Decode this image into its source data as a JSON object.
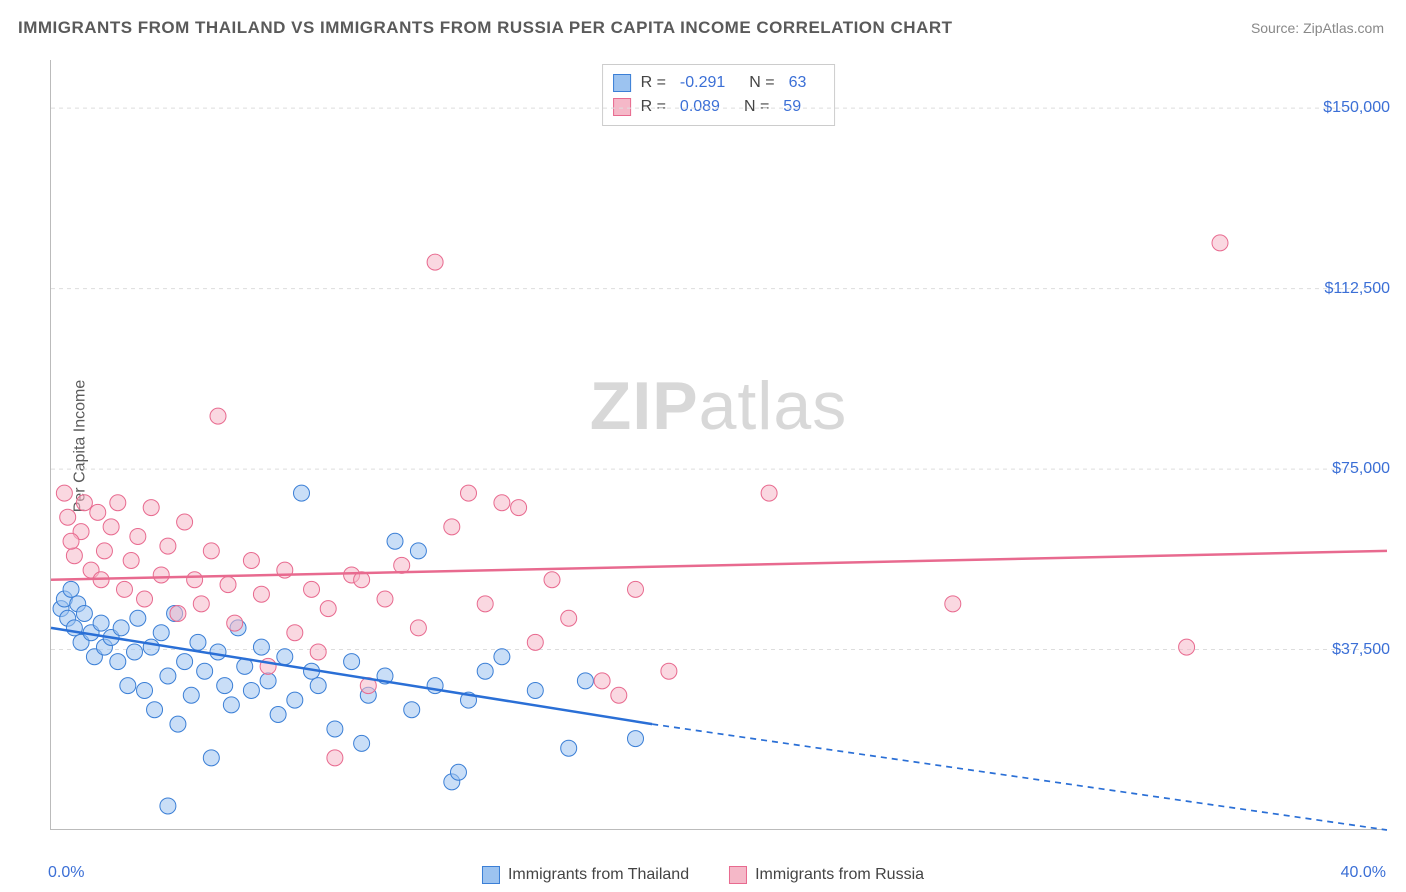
{
  "title": "IMMIGRANTS FROM THAILAND VS IMMIGRANTS FROM RUSSIA PER CAPITA INCOME CORRELATION CHART",
  "source_label": "Source: ZipAtlas.com",
  "y_axis_label": "Per Capita Income",
  "watermark": {
    "bold": "ZIP",
    "rest": "atlas"
  },
  "chart": {
    "type": "scatter",
    "background_color": "#ffffff",
    "grid_color": "#dddddd",
    "axis_color": "#bbbbbb",
    "xlim": [
      0,
      40
    ],
    "ylim": [
      0,
      160000
    ],
    "x_ticks": [
      {
        "value": 0,
        "label": "0.0%"
      },
      {
        "value": 40,
        "label": "40.0%"
      }
    ],
    "y_ticks": [
      {
        "value": 37500,
        "label": "$37,500"
      },
      {
        "value": 75000,
        "label": "$75,000"
      },
      {
        "value": 112500,
        "label": "$112,500"
      },
      {
        "value": 150000,
        "label": "$150,000"
      }
    ],
    "marker_radius": 8,
    "marker_opacity": 0.55,
    "series": [
      {
        "name": "Immigrants from Thailand",
        "fill_color": "#9cc3f0",
        "stroke_color": "#3b7fd6",
        "stats": {
          "R": "-0.291",
          "N": "63"
        },
        "trend": {
          "solid": {
            "x1": 0,
            "y1": 42000,
            "x2": 18,
            "y2": 22000
          },
          "dashed": {
            "x1": 18,
            "y1": 22000,
            "x2": 40,
            "y2": 0
          },
          "line_width": 2.5,
          "line_color": "#2a6fd6"
        },
        "points": [
          {
            "x": 0.3,
            "y": 46000
          },
          {
            "x": 0.4,
            "y": 48000
          },
          {
            "x": 0.5,
            "y": 44000
          },
          {
            "x": 0.6,
            "y": 50000
          },
          {
            "x": 0.7,
            "y": 42000
          },
          {
            "x": 0.8,
            "y": 47000
          },
          {
            "x": 0.9,
            "y": 39000
          },
          {
            "x": 1.0,
            "y": 45000
          },
          {
            "x": 1.2,
            "y": 41000
          },
          {
            "x": 1.3,
            "y": 36000
          },
          {
            "x": 1.5,
            "y": 43000
          },
          {
            "x": 1.6,
            "y": 38000
          },
          {
            "x": 1.8,
            "y": 40000
          },
          {
            "x": 2.0,
            "y": 35000
          },
          {
            "x": 2.1,
            "y": 42000
          },
          {
            "x": 2.3,
            "y": 30000
          },
          {
            "x": 2.5,
            "y": 37000
          },
          {
            "x": 2.6,
            "y": 44000
          },
          {
            "x": 2.8,
            "y": 29000
          },
          {
            "x": 3.0,
            "y": 38000
          },
          {
            "x": 3.1,
            "y": 25000
          },
          {
            "x": 3.3,
            "y": 41000
          },
          {
            "x": 3.5,
            "y": 32000
          },
          {
            "x": 3.7,
            "y": 45000
          },
          {
            "x": 3.8,
            "y": 22000
          },
          {
            "x": 4.0,
            "y": 35000
          },
          {
            "x": 4.2,
            "y": 28000
          },
          {
            "x": 4.4,
            "y": 39000
          },
          {
            "x": 4.6,
            "y": 33000
          },
          {
            "x": 4.8,
            "y": 15000
          },
          {
            "x": 5.0,
            "y": 37000
          },
          {
            "x": 5.2,
            "y": 30000
          },
          {
            "x": 5.4,
            "y": 26000
          },
          {
            "x": 5.6,
            "y": 42000
          },
          {
            "x": 5.8,
            "y": 34000
          },
          {
            "x": 6.0,
            "y": 29000
          },
          {
            "x": 6.3,
            "y": 38000
          },
          {
            "x": 6.5,
            "y": 31000
          },
          {
            "x": 6.8,
            "y": 24000
          },
          {
            "x": 7.0,
            "y": 36000
          },
          {
            "x": 7.3,
            "y": 27000
          },
          {
            "x": 7.5,
            "y": 70000
          },
          {
            "x": 7.8,
            "y": 33000
          },
          {
            "x": 8.0,
            "y": 30000
          },
          {
            "x": 8.5,
            "y": 21000
          },
          {
            "x": 9.0,
            "y": 35000
          },
          {
            "x": 9.3,
            "y": 18000
          },
          {
            "x": 9.5,
            "y": 28000
          },
          {
            "x": 10.0,
            "y": 32000
          },
          {
            "x": 10.3,
            "y": 60000
          },
          {
            "x": 10.8,
            "y": 25000
          },
          {
            "x": 11.0,
            "y": 58000
          },
          {
            "x": 11.5,
            "y": 30000
          },
          {
            "x": 12.0,
            "y": 10000
          },
          {
            "x": 12.2,
            "y": 12000
          },
          {
            "x": 12.5,
            "y": 27000
          },
          {
            "x": 13.0,
            "y": 33000
          },
          {
            "x": 13.5,
            "y": 36000
          },
          {
            "x": 14.5,
            "y": 29000
          },
          {
            "x": 15.5,
            "y": 17000
          },
          {
            "x": 16.0,
            "y": 31000
          },
          {
            "x": 17.5,
            "y": 19000
          },
          {
            "x": 3.5,
            "y": 5000
          }
        ]
      },
      {
        "name": "Immigrants from Russia",
        "fill_color": "#f5b8c8",
        "stroke_color": "#e86a8f",
        "stats": {
          "R": "0.089",
          "N": "59"
        },
        "trend": {
          "solid": {
            "x1": 0,
            "y1": 52000,
            "x2": 40,
            "y2": 58000
          },
          "dashed": null,
          "line_width": 2.5,
          "line_color": "#e86a8f"
        },
        "points": [
          {
            "x": 0.5,
            "y": 65000
          },
          {
            "x": 0.7,
            "y": 57000
          },
          {
            "x": 0.9,
            "y": 62000
          },
          {
            "x": 1.0,
            "y": 68000
          },
          {
            "x": 0.6,
            "y": 60000
          },
          {
            "x": 1.2,
            "y": 54000
          },
          {
            "x": 1.4,
            "y": 66000
          },
          {
            "x": 1.5,
            "y": 52000
          },
          {
            "x": 1.6,
            "y": 58000
          },
          {
            "x": 1.8,
            "y": 63000
          },
          {
            "x": 2.0,
            "y": 68000
          },
          {
            "x": 2.2,
            "y": 50000
          },
          {
            "x": 2.4,
            "y": 56000
          },
          {
            "x": 2.6,
            "y": 61000
          },
          {
            "x": 2.8,
            "y": 48000
          },
          {
            "x": 3.0,
            "y": 67000
          },
          {
            "x": 3.3,
            "y": 53000
          },
          {
            "x": 3.5,
            "y": 59000
          },
          {
            "x": 3.8,
            "y": 45000
          },
          {
            "x": 4.0,
            "y": 64000
          },
          {
            "x": 4.3,
            "y": 52000
          },
          {
            "x": 4.5,
            "y": 47000
          },
          {
            "x": 4.8,
            "y": 58000
          },
          {
            "x": 5.0,
            "y": 86000
          },
          {
            "x": 5.3,
            "y": 51000
          },
          {
            "x": 5.5,
            "y": 43000
          },
          {
            "x": 6.0,
            "y": 56000
          },
          {
            "x": 6.3,
            "y": 49000
          },
          {
            "x": 6.5,
            "y": 34000
          },
          {
            "x": 7.0,
            "y": 54000
          },
          {
            "x": 7.3,
            "y": 41000
          },
          {
            "x": 7.8,
            "y": 50000
          },
          {
            "x": 8.0,
            "y": 37000
          },
          {
            "x": 8.3,
            "y": 46000
          },
          {
            "x": 8.5,
            "y": 15000
          },
          {
            "x": 9.0,
            "y": 53000
          },
          {
            "x": 9.3,
            "y": 52000
          },
          {
            "x": 9.5,
            "y": 30000
          },
          {
            "x": 10.0,
            "y": 48000
          },
          {
            "x": 10.5,
            "y": 55000
          },
          {
            "x": 11.0,
            "y": 42000
          },
          {
            "x": 11.5,
            "y": 118000
          },
          {
            "x": 12.0,
            "y": 63000
          },
          {
            "x": 12.5,
            "y": 70000
          },
          {
            "x": 13.0,
            "y": 47000
          },
          {
            "x": 13.5,
            "y": 68000
          },
          {
            "x": 14.0,
            "y": 67000
          },
          {
            "x": 14.5,
            "y": 39000
          },
          {
            "x": 15.0,
            "y": 52000
          },
          {
            "x": 15.5,
            "y": 44000
          },
          {
            "x": 16.5,
            "y": 31000
          },
          {
            "x": 17.0,
            "y": 28000
          },
          {
            "x": 17.5,
            "y": 50000
          },
          {
            "x": 18.5,
            "y": 33000
          },
          {
            "x": 21.5,
            "y": 70000
          },
          {
            "x": 27.0,
            "y": 47000
          },
          {
            "x": 34.0,
            "y": 38000
          },
          {
            "x": 35.0,
            "y": 122000
          },
          {
            "x": 0.4,
            "y": 70000
          }
        ]
      }
    ]
  },
  "stats_legend_labels": {
    "R": "R =",
    "N": "N ="
  },
  "bottom_legend": [
    {
      "label": "Immigrants from Thailand",
      "fill": "#9cc3f0",
      "stroke": "#3b7fd6"
    },
    {
      "label": "Immigrants from Russia",
      "fill": "#f5b8c8",
      "stroke": "#e86a8f"
    }
  ]
}
